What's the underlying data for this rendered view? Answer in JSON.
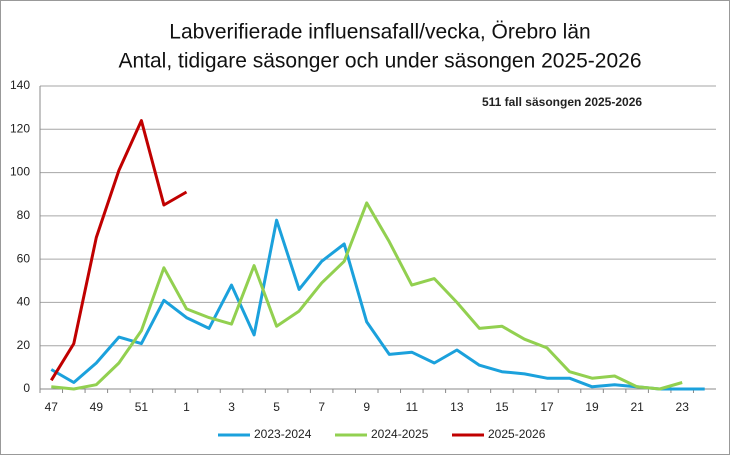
{
  "chart_data": {
    "type": "line",
    "title": [
      "Labverifierade influensafall/vecka, Örebro län",
      "Antal, tidigare säsonger och under säsongen 2025-2026"
    ],
    "annotation": "511 fall säsongen 2025-2026",
    "categories": [
      "47",
      null,
      "49",
      null,
      "51",
      null,
      "1",
      null,
      "3",
      null,
      "5",
      null,
      "7",
      null,
      "9",
      null,
      "11",
      null,
      "13",
      null,
      "15",
      null,
      "17",
      null,
      "19",
      null,
      "21",
      null,
      "23",
      null
    ],
    "series": [
      {
        "name": "2023-2024",
        "color": "#1ba1dc",
        "values": [
          9,
          3,
          12,
          24,
          21,
          41,
          33,
          28,
          48,
          25,
          78,
          46,
          59,
          67,
          31,
          16,
          17,
          12,
          18,
          11,
          8,
          7,
          5,
          5,
          1,
          2,
          1,
          0,
          0,
          0
        ]
      },
      {
        "name": "2024-2025",
        "color": "#92d050",
        "values": [
          1,
          0,
          2,
          12,
          27,
          56,
          37,
          33,
          30,
          57,
          29,
          36,
          49,
          59,
          86,
          68,
          48,
          51,
          40,
          28,
          29,
          23,
          19,
          8,
          5,
          6,
          1,
          0,
          3,
          null
        ]
      },
      {
        "name": "2025-2026",
        "color": "#c00000",
        "values": [
          4,
          21,
          70,
          101,
          124,
          85,
          91,
          null,
          null,
          null,
          null,
          null,
          null,
          null,
          null,
          null,
          null,
          null,
          null,
          null,
          null,
          null,
          null,
          null,
          null,
          null,
          null,
          null,
          null,
          null
        ]
      }
    ],
    "ylim": [
      0,
      140
    ],
    "yticks": [
      0,
      20,
      40,
      60,
      80,
      100,
      120,
      140
    ],
    "grid": true,
    "legend": "bottom"
  }
}
